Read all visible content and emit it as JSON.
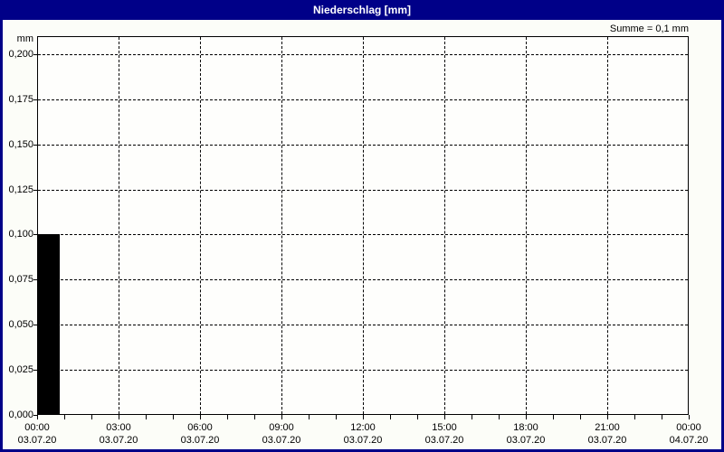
{
  "window": {
    "title": "Niederschlag [mm]",
    "colors": {
      "title_bar": "#000088",
      "title_text": "#ffffff",
      "border": "#000088",
      "background": "#fcfdf8",
      "plot_background": "#fefefc",
      "grid": "#000000",
      "text": "#000000",
      "bar": "#000000"
    }
  },
  "summary": "Summe = 0,1 mm",
  "chart_data": {
    "type": "bar",
    "title": "Niederschlag [mm]",
    "ylabel": "mm",
    "xlabel": "",
    "ylim": [
      0,
      0.21
    ],
    "grid": "dashed",
    "legend_position": "none",
    "summary_annotation": "Summe = 0,1 mm",
    "sum_value_mm": 0.1,
    "y_ticks": [
      {
        "value": 0.0,
        "label": "0,000"
      },
      {
        "value": 0.025,
        "label": "0,025"
      },
      {
        "value": 0.05,
        "label": "0,050"
      },
      {
        "value": 0.075,
        "label": "0,075"
      },
      {
        "value": 0.1,
        "label": "0,100"
      },
      {
        "value": 0.125,
        "label": "0,125"
      },
      {
        "value": 0.15,
        "label": "0,150"
      },
      {
        "value": 0.175,
        "label": "0,175"
      },
      {
        "value": 0.2,
        "label": "0,200"
      }
    ],
    "x_axis": {
      "total_hours": 24,
      "minor_tick_hours": 1,
      "major_tick_hours": 3,
      "major_ticks": [
        {
          "hour": 0,
          "time": "00:00",
          "date": "03.07.20"
        },
        {
          "hour": 3,
          "time": "03:00",
          "date": "03.07.20"
        },
        {
          "hour": 6,
          "time": "06:00",
          "date": "03.07.20"
        },
        {
          "hour": 9,
          "time": "09:00",
          "date": "03.07.20"
        },
        {
          "hour": 12,
          "time": "12:00",
          "date": "03.07.20"
        },
        {
          "hour": 15,
          "time": "15:00",
          "date": "03.07.20"
        },
        {
          "hour": 18,
          "time": "18:00",
          "date": "03.07.20"
        },
        {
          "hour": 21,
          "time": "21:00",
          "date": "03.07.20"
        },
        {
          "hour": 24,
          "time": "00:00",
          "date": "04.07.20"
        }
      ]
    },
    "bars": [
      {
        "start_hour": 0,
        "duration_hours": 0.8,
        "value": 0.1
      }
    ]
  }
}
